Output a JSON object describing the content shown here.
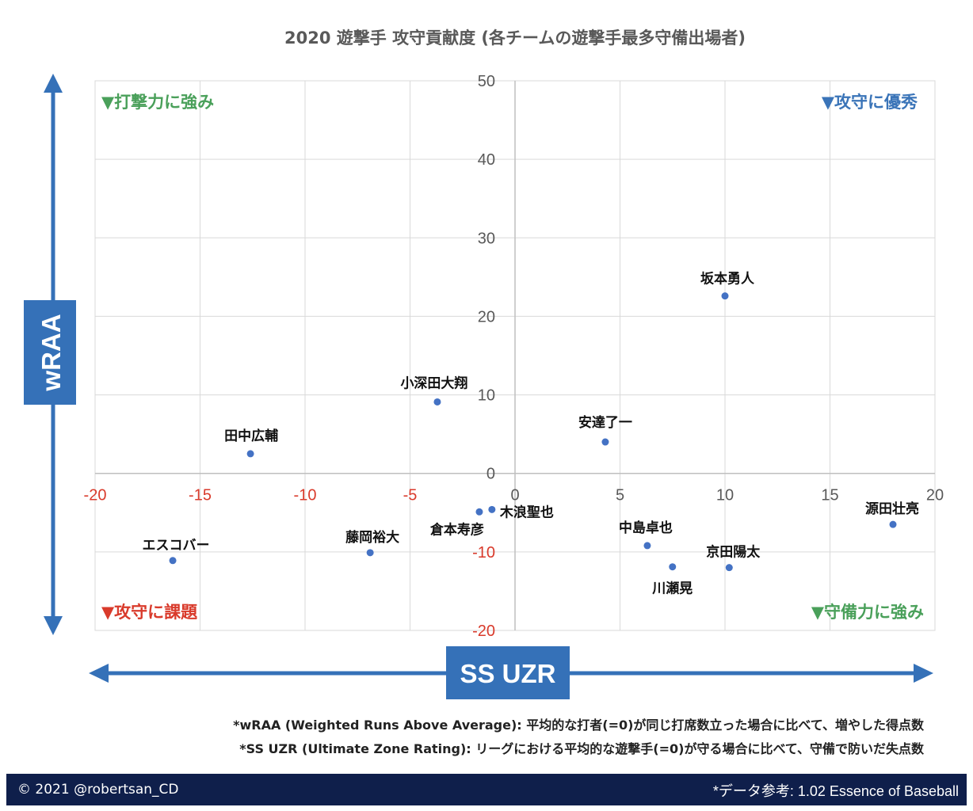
{
  "chart_data": {
    "type": "scatter",
    "title": "2020 遊撃手 攻守貢献度 (各チームの遊撃手最多守備出場者)",
    "xlabel": "SS UZR",
    "ylabel": "wRAA",
    "xlim": [
      -20,
      20
    ],
    "ylim": [
      -20,
      50
    ],
    "x_ticks": [
      -20,
      -15,
      -10,
      -5,
      0,
      5,
      10,
      15,
      20
    ],
    "y_ticks": [
      -20,
      -10,
      0,
      10,
      20,
      30,
      40,
      50
    ],
    "grid": true,
    "points": [
      {
        "name": "坂本勇人",
        "x": 10.0,
        "y": 22.6
      },
      {
        "name": "小深田大翔",
        "x": -3.7,
        "y": 9.1
      },
      {
        "name": "安達了一",
        "x": 4.3,
        "y": 4.0
      },
      {
        "name": "田中広輔",
        "x": -12.6,
        "y": 2.5
      },
      {
        "name": "木浪聖也",
        "x": -1.1,
        "y": -4.6
      },
      {
        "name": "倉本寿彦",
        "x": -1.7,
        "y": -4.9
      },
      {
        "name": "源田壮亮",
        "x": 18.0,
        "y": -6.5
      },
      {
        "name": "中島卓也",
        "x": 6.3,
        "y": -9.2
      },
      {
        "name": "藤岡裕大",
        "x": -6.9,
        "y": -10.1
      },
      {
        "name": "エスコバー",
        "x": -16.3,
        "y": -11.1
      },
      {
        "name": "川瀬晃",
        "x": 7.5,
        "y": -11.9
      },
      {
        "name": "京田陽太",
        "x": 10.2,
        "y": -12.0
      }
    ],
    "quadrant_labels": {
      "top_left": "▼打撃力に強み",
      "top_right": "▼攻守に優秀",
      "bottom_left": "▼攻守に課題",
      "bottom_right": "▼守備力に強み"
    },
    "colors": {
      "marker": "#4472c4",
      "axis_arrow": "#3571b8",
      "negative_tick": "#d93a2b",
      "tick": "#595959",
      "good_label": "#4aa05a",
      "bad_label": "#d93a2b",
      "best_label": "#3a74b8"
    }
  },
  "footnotes": {
    "wraa": "*wRAA (Weighted Runs Above Average): 平均的な打者(=0)が同じ打席数立った場合に比べて、増やした得点数",
    "uzr": "*SS UZR (Ultimate Zone Rating): リーグにおける平均的な遊撃手(=0)が守る場合に比べて、守備で防いだ失点数"
  },
  "footer": {
    "copyright": "© 2021 @robertsan_CD",
    "source": "*データ参考: 1.02 Essence of Baseball"
  }
}
